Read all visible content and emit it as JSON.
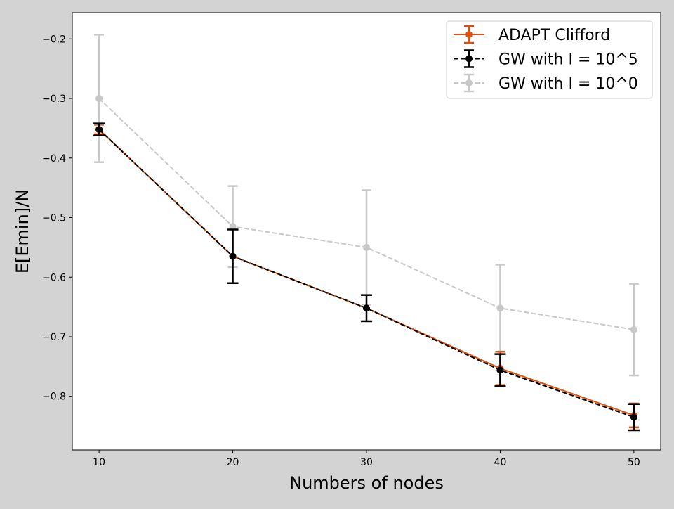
{
  "chart_data": {
    "type": "line",
    "xlabel": "Numbers of nodes",
    "ylabel": "E[Emin]/N",
    "x": [
      10,
      20,
      30,
      40,
      50
    ],
    "xlim": [
      8,
      52
    ],
    "ylim": [
      -0.89,
      -0.156
    ],
    "xticks": [
      10,
      20,
      30,
      40,
      50
    ],
    "yticks": [
      -0.2,
      -0.3,
      -0.4,
      -0.5,
      -0.6,
      -0.7,
      -0.8
    ],
    "grid": false,
    "legend_position": "top-right",
    "series": [
      {
        "name": "GW with I = 10^0",
        "color": "#c8c8c8",
        "line_style": "dashed",
        "values": [
          -0.3,
          -0.515,
          -0.55,
          -0.652,
          -0.688
        ],
        "errors": [
          0.107,
          0.068,
          0.096,
          0.073,
          0.077
        ]
      },
      {
        "name": "ADAPT Clifford",
        "color": "#e0520f",
        "line_style": "solid",
        "values": [
          -0.352,
          -0.565,
          -0.652,
          -0.753,
          -0.832
        ],
        "errors": [
          0.008,
          0.0,
          0.0,
          0.028,
          0.02
        ]
      },
      {
        "name": "GW with I = 10^5",
        "color": "#000000",
        "line_style": "dashed",
        "values": [
          -0.352,
          -0.565,
          -0.652,
          -0.756,
          -0.835
        ],
        "errors": [
          0.01,
          0.045,
          0.022,
          0.027,
          0.022
        ]
      }
    ],
    "legend_order": [
      "ADAPT Clifford",
      "GW with I = 10^5",
      "GW with I = 10^0"
    ]
  }
}
